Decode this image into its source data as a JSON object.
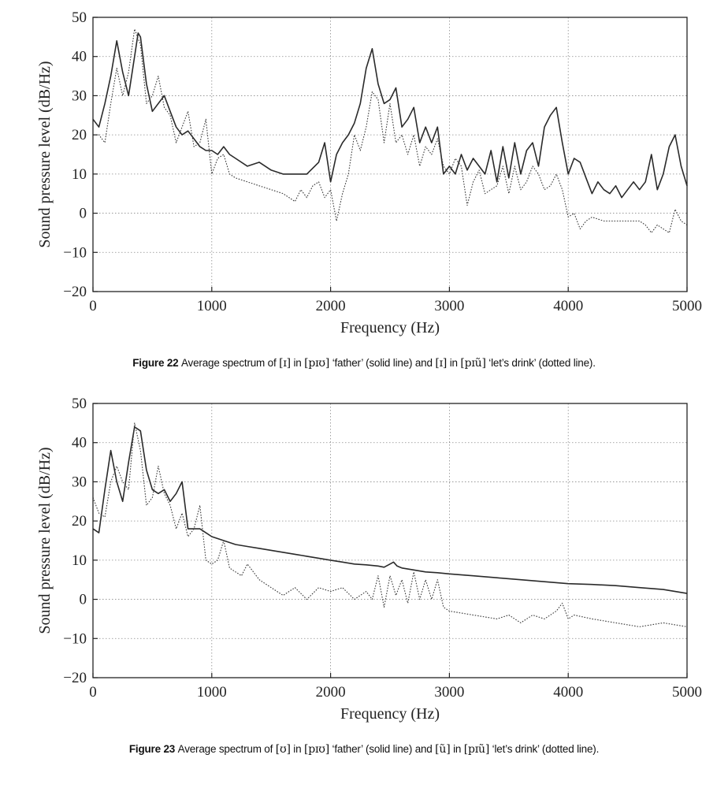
{
  "chart_data": [
    {
      "type": "line",
      "figure_label": "Figure 22",
      "caption_parts": {
        "t1": "Average spectrum of ",
        "ipa1": "[ɪ]",
        "t2": " in ",
        "ipa2": "[pɪʊ]",
        "t3": " ‘father’ (solid line) and ",
        "ipa3": "[ɪ]",
        "t4": " in ",
        "ipa4": "[pɪũ]",
        "t5": " ‘let’s drink’ (dotted line)."
      },
      "xlabel": "Frequency (Hz)",
      "ylabel": "Sound pressure level (dB/Hz)",
      "xlim": [
        0,
        5000
      ],
      "ylim": [
        -20,
        50
      ],
      "xticks": [
        "0",
        "1000",
        "2000",
        "3000",
        "4000",
        "5000"
      ],
      "yticks": [
        "50",
        "40",
        "30",
        "20",
        "10",
        "0",
        "−10",
        "−20"
      ],
      "grid": true,
      "series": [
        {
          "style": "solid",
          "x": [
            0,
            50,
            100,
            150,
            200,
            250,
            300,
            350,
            380,
            400,
            450,
            500,
            550,
            600,
            650,
            700,
            750,
            800,
            850,
            900,
            950,
            1000,
            1050,
            1100,
            1150,
            1200,
            1300,
            1400,
            1500,
            1600,
            1700,
            1800,
            1900,
            1950,
            2000,
            2050,
            2100,
            2150,
            2200,
            2250,
            2300,
            2350,
            2400,
            2450,
            2500,
            2550,
            2600,
            2650,
            2700,
            2750,
            2800,
            2850,
            2900,
            2950,
            3000,
            3050,
            3100,
            3150,
            3200,
            3250,
            3300,
            3350,
            3400,
            3450,
            3500,
            3550,
            3600,
            3650,
            3700,
            3750,
            3800,
            3850,
            3900,
            3950,
            4000,
            4050,
            4100,
            4150,
            4200,
            4250,
            4300,
            4350,
            4400,
            4450,
            4500,
            4550,
            4600,
            4650,
            4700,
            4750,
            4800,
            4850,
            4900,
            4950,
            5000
          ],
          "y": [
            24,
            22,
            28,
            35,
            44,
            36,
            30,
            40,
            46,
            45,
            33,
            26,
            28,
            30,
            26,
            22,
            20,
            21,
            19,
            17,
            16,
            16,
            15,
            17,
            15,
            14,
            12,
            13,
            11,
            10,
            10,
            10,
            13,
            18,
            8,
            15,
            18,
            20,
            23,
            28,
            37,
            42,
            33,
            28,
            29,
            32,
            22,
            24,
            27,
            18,
            22,
            18,
            22,
            10,
            12,
            10,
            15,
            11,
            14,
            12,
            10,
            16,
            8,
            17,
            9,
            18,
            10,
            16,
            18,
            12,
            22,
            25,
            27,
            18,
            10,
            14,
            13,
            9,
            5,
            8,
            6,
            5,
            7,
            4,
            6,
            8,
            6,
            8,
            15,
            6,
            10,
            17,
            20,
            12,
            7
          ]
        },
        {
          "style": "dotted",
          "x": [
            0,
            50,
            100,
            150,
            200,
            250,
            300,
            350,
            400,
            450,
            500,
            550,
            600,
            650,
            700,
            750,
            800,
            850,
            900,
            950,
            1000,
            1050,
            1100,
            1150,
            1200,
            1300,
            1400,
            1500,
            1600,
            1700,
            1750,
            1800,
            1850,
            1900,
            1950,
            2000,
            2050,
            2100,
            2150,
            2200,
            2250,
            2300,
            2350,
            2400,
            2450,
            2500,
            2550,
            2600,
            2650,
            2700,
            2750,
            2800,
            2850,
            2900,
            2950,
            3000,
            3050,
            3100,
            3150,
            3200,
            3250,
            3300,
            3350,
            3400,
            3450,
            3500,
            3550,
            3600,
            3650,
            3700,
            3750,
            3800,
            3850,
            3900,
            3950,
            4000,
            4050,
            4100,
            4150,
            4200,
            4300,
            4400,
            4500,
            4600,
            4650,
            4700,
            4750,
            4800,
            4850,
            4900,
            4950,
            5000
          ],
          "y": [
            20,
            20,
            18,
            28,
            37,
            30,
            36,
            47,
            43,
            28,
            30,
            35,
            27,
            25,
            18,
            22,
            26,
            17,
            18,
            24,
            10,
            14,
            15,
            10,
            9,
            8,
            7,
            6,
            5,
            3,
            6,
            4,
            7,
            8,
            4,
            6,
            -2,
            5,
            10,
            20,
            16,
            22,
            31,
            29,
            18,
            28,
            18,
            20,
            15,
            20,
            12,
            17,
            15,
            19,
            12,
            10,
            14,
            12,
            2,
            8,
            11,
            5,
            6,
            7,
            12,
            5,
            12,
            6,
            8,
            12,
            10,
            6,
            7,
            10,
            6,
            -1,
            0,
            -4,
            -2,
            -1,
            -2,
            -2,
            -2,
            -2,
            -3,
            -5,
            -3,
            -4,
            -5,
            1,
            -2,
            -3
          ]
        }
      ]
    },
    {
      "type": "line",
      "figure_label": "Figure 23",
      "caption_parts": {
        "t1": "Average spectrum of ",
        "ipa1": "[ʊ]",
        "t2": " in ",
        "ipa2": "[pɪʊ]",
        "t3": " ‘father’ (solid line) and ",
        "ipa3": "[ũ]",
        "t4": " in ",
        "ipa4": "[pɪũ]",
        "t5": " ‘let’s drink’ (dotted line)."
      },
      "xlabel": "Frequency (Hz)",
      "ylabel": "Sound pressure level (dB/Hz)",
      "xlim": [
        0,
        5000
      ],
      "ylim": [
        -20,
        50
      ],
      "xticks": [
        "0",
        "1000",
        "2000",
        "3000",
        "4000",
        "5000"
      ],
      "yticks": [
        "50",
        "40",
        "30",
        "20",
        "10",
        "0",
        "−10",
        "−20"
      ],
      "grid": true,
      "series": [
        {
          "style": "solid",
          "x": [
            0,
            50,
            100,
            150,
            200,
            250,
            300,
            350,
            400,
            450,
            500,
            550,
            600,
            650,
            700,
            750,
            800,
            850,
            900,
            950,
            1000,
            1100,
            1200,
            1300,
            1400,
            1500,
            1600,
            1700,
            1800,
            1900,
            2000,
            2100,
            2200,
            2300,
            2400,
            2450,
            2500,
            2530,
            2560,
            2600,
            2700,
            2800,
            2900,
            3000,
            3200,
            3400,
            3600,
            3800,
            4000,
            4200,
            4400,
            4600,
            4800,
            4900,
            5000
          ],
          "y": [
            18,
            17,
            28,
            38,
            30,
            25,
            35,
            44,
            43,
            33,
            28,
            27,
            28,
            25,
            27,
            30,
            18,
            18,
            18,
            17,
            16,
            15,
            14,
            13.5,
            13,
            12.5,
            12,
            11.5,
            11,
            10.5,
            10,
            9.5,
            9,
            8.8,
            8.5,
            8.2,
            9,
            9.5,
            8.5,
            8,
            7.5,
            7,
            6.8,
            6.5,
            6,
            5.5,
            5,
            4.5,
            4,
            3.8,
            3.5,
            3,
            2.5,
            2,
            1.5
          ]
        },
        {
          "style": "dotted",
          "x": [
            0,
            50,
            100,
            150,
            200,
            250,
            300,
            350,
            400,
            450,
            500,
            550,
            600,
            650,
            700,
            750,
            800,
            850,
            900,
            950,
            1000,
            1050,
            1100,
            1150,
            1200,
            1250,
            1300,
            1400,
            1500,
            1600,
            1700,
            1800,
            1900,
            2000,
            2100,
            2200,
            2300,
            2350,
            2400,
            2450,
            2500,
            2550,
            2600,
            2650,
            2700,
            2750,
            2800,
            2850,
            2900,
            2950,
            3000,
            3200,
            3400,
            3500,
            3600,
            3700,
            3800,
            3900,
            3950,
            4000,
            4050,
            4200,
            4400,
            4600,
            4800,
            5000
          ],
          "y": [
            26,
            22,
            21,
            30,
            34,
            30,
            28,
            45,
            38,
            24,
            26,
            34,
            27,
            24,
            18,
            22,
            16,
            18,
            24,
            10,
            9,
            10,
            15,
            8,
            7,
            6,
            9,
            5,
            3,
            1,
            3,
            0,
            3,
            2,
            3,
            0,
            2,
            0,
            6,
            -2,
            6,
            1,
            5,
            -1,
            7,
            0,
            5,
            0,
            5,
            -2,
            -3,
            -4,
            -5,
            -4,
            -6,
            -4,
            -5,
            -3,
            -1,
            -5,
            -4,
            -5,
            -6,
            -7,
            -6,
            -7
          ]
        }
      ]
    }
  ]
}
